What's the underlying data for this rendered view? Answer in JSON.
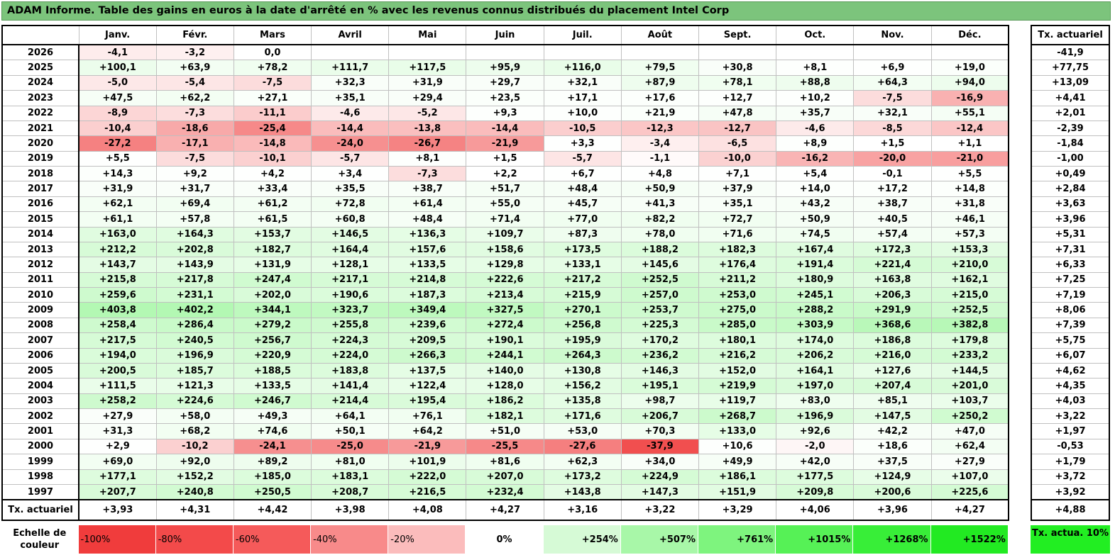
{
  "title": "ADAM Informe. Table des gains en euros à la date d'arrêté en % avec les revenus connus distribués du placement Intel Corp",
  "months": [
    "Janv.",
    "Févr.",
    "Mars",
    "Avril",
    "Mai",
    "Juin",
    "Juil.",
    "Août",
    "Sept.",
    "Oct.",
    "Nov.",
    "Déc."
  ],
  "actuarial_header": "Tx. actuariel",
  "rows": [
    {
      "year": "2026",
      "values": [
        "-4,1",
        "-3,2",
        "0,0",
        "",
        "",
        "",
        "",
        "",
        "",
        "",
        "",
        ""
      ],
      "actuarial": "-41,9"
    },
    {
      "year": "2025",
      "values": [
        "+100,1",
        "+63,9",
        "+78,2",
        "+111,7",
        "+117,5",
        "+95,9",
        "+116,0",
        "+79,5",
        "+30,8",
        "+8,1",
        "+6,9",
        "+19,0"
      ],
      "actuarial": "+77,75"
    },
    {
      "year": "2024",
      "values": [
        "-5,0",
        "-5,4",
        "-7,5",
        "+32,3",
        "+31,9",
        "+29,7",
        "+32,1",
        "+87,9",
        "+78,1",
        "+88,8",
        "+64,3",
        "+94,0"
      ],
      "actuarial": "+13,09"
    },
    {
      "year": "2023",
      "values": [
        "+47,5",
        "+62,2",
        "+27,1",
        "+35,1",
        "+29,4",
        "+23,5",
        "+17,1",
        "+17,6",
        "+12,7",
        "+10,2",
        "-7,5",
        "-16,9"
      ],
      "actuarial": "+4,41"
    },
    {
      "year": "2022",
      "values": [
        "-8,9",
        "-7,3",
        "-11,1",
        "-4,6",
        "-5,2",
        "+9,3",
        "+10,0",
        "+21,9",
        "+47,8",
        "+35,7",
        "+32,1",
        "+55,1"
      ],
      "actuarial": "+2,01"
    },
    {
      "year": "2021",
      "values": [
        "-10,4",
        "-18,6",
        "-25,4",
        "-14,4",
        "-13,8",
        "-14,4",
        "-10,5",
        "-12,3",
        "-12,7",
        "-4,6",
        "-8,5",
        "-12,4"
      ],
      "actuarial": "-2,39"
    },
    {
      "year": "2020",
      "values": [
        "-27,2",
        "-17,1",
        "-14,8",
        "-24,0",
        "-26,7",
        "-21,9",
        "+3,3",
        "-3,4",
        "-6,5",
        "+8,9",
        "+1,5",
        "+1,1"
      ],
      "actuarial": "-1,84"
    },
    {
      "year": "2019",
      "values": [
        "+5,5",
        "-7,5",
        "-10,1",
        "-5,7",
        "+8,1",
        "+1,5",
        "-5,7",
        "-1,1",
        "-10,0",
        "-16,2",
        "-20,0",
        "-21,0"
      ],
      "actuarial": "-1,00"
    },
    {
      "year": "2018",
      "values": [
        "+14,3",
        "+9,2",
        "+4,2",
        "+3,4",
        "-7,3",
        "+2,2",
        "+6,7",
        "+4,8",
        "+7,1",
        "+5,4",
        "-0,1",
        "+5,5"
      ],
      "actuarial": "+0,49"
    },
    {
      "year": "2017",
      "values": [
        "+31,9",
        "+31,7",
        "+33,4",
        "+35,5",
        "+38,7",
        "+51,7",
        "+48,4",
        "+50,9",
        "+37,9",
        "+14,0",
        "+17,2",
        "+14,8"
      ],
      "actuarial": "+2,84"
    },
    {
      "year": "2016",
      "values": [
        "+62,1",
        "+69,4",
        "+61,2",
        "+72,8",
        "+61,4",
        "+55,0",
        "+45,7",
        "+41,3",
        "+35,1",
        "+43,2",
        "+38,7",
        "+31,8"
      ],
      "actuarial": "+3,63"
    },
    {
      "year": "2015",
      "values": [
        "+61,1",
        "+57,8",
        "+61,5",
        "+60,8",
        "+48,4",
        "+71,4",
        "+77,0",
        "+82,2",
        "+72,7",
        "+50,9",
        "+40,5",
        "+46,1"
      ],
      "actuarial": "+3,96"
    },
    {
      "year": "2014",
      "values": [
        "+163,0",
        "+164,3",
        "+153,7",
        "+146,5",
        "+136,3",
        "+109,7",
        "+87,3",
        "+78,0",
        "+71,6",
        "+74,5",
        "+57,4",
        "+57,3"
      ],
      "actuarial": "+5,31"
    },
    {
      "year": "2013",
      "values": [
        "+212,2",
        "+202,8",
        "+182,7",
        "+164,4",
        "+157,6",
        "+158,6",
        "+173,5",
        "+188,2",
        "+182,3",
        "+167,4",
        "+172,3",
        "+153,3"
      ],
      "actuarial": "+7,31"
    },
    {
      "year": "2012",
      "values": [
        "+143,7",
        "+143,9",
        "+131,9",
        "+128,1",
        "+133,5",
        "+129,8",
        "+133,1",
        "+145,6",
        "+176,4",
        "+191,4",
        "+221,4",
        "+210,0"
      ],
      "actuarial": "+6,33"
    },
    {
      "year": "2011",
      "values": [
        "+215,8",
        "+217,8",
        "+247,4",
        "+217,1",
        "+214,8",
        "+222,6",
        "+217,2",
        "+252,5",
        "+211,2",
        "+180,9",
        "+163,8",
        "+162,1"
      ],
      "actuarial": "+7,25"
    },
    {
      "year": "2010",
      "values": [
        "+259,6",
        "+231,1",
        "+202,0",
        "+190,6",
        "+187,3",
        "+213,4",
        "+215,9",
        "+257,0",
        "+253,0",
        "+245,1",
        "+206,3",
        "+215,0"
      ],
      "actuarial": "+7,19"
    },
    {
      "year": "2009",
      "values": [
        "+403,8",
        "+402,2",
        "+344,1",
        "+323,7",
        "+349,4",
        "+327,5",
        "+270,1",
        "+253,7",
        "+275,0",
        "+288,2",
        "+291,9",
        "+252,5"
      ],
      "actuarial": "+8,06"
    },
    {
      "year": "2008",
      "values": [
        "+258,4",
        "+286,4",
        "+279,2",
        "+255,8",
        "+239,6",
        "+272,4",
        "+256,8",
        "+225,3",
        "+285,0",
        "+303,9",
        "+368,6",
        "+382,8"
      ],
      "actuarial": "+7,39"
    },
    {
      "year": "2007",
      "values": [
        "+217,5",
        "+240,5",
        "+256,7",
        "+224,3",
        "+209,5",
        "+190,1",
        "+195,9",
        "+170,2",
        "+180,1",
        "+174,0",
        "+186,8",
        "+179,8"
      ],
      "actuarial": "+5,75"
    },
    {
      "year": "2006",
      "values": [
        "+194,0",
        "+196,9",
        "+220,9",
        "+224,0",
        "+266,3",
        "+244,1",
        "+264,3",
        "+236,2",
        "+216,2",
        "+206,2",
        "+216,0",
        "+233,2"
      ],
      "actuarial": "+6,07"
    },
    {
      "year": "2005",
      "values": [
        "+200,5",
        "+185,7",
        "+188,5",
        "+183,8",
        "+137,5",
        "+140,0",
        "+130,8",
        "+146,3",
        "+152,0",
        "+164,1",
        "+127,6",
        "+144,5"
      ],
      "actuarial": "+4,62"
    },
    {
      "year": "2004",
      "values": [
        "+111,5",
        "+121,3",
        "+133,5",
        "+141,4",
        "+122,4",
        "+128,0",
        "+156,2",
        "+195,1",
        "+219,9",
        "+197,0",
        "+207,4",
        "+201,0"
      ],
      "actuarial": "+4,35"
    },
    {
      "year": "2003",
      "values": [
        "+258,2",
        "+224,6",
        "+246,7",
        "+214,4",
        "+195,4",
        "+186,2",
        "+135,8",
        "+98,7",
        "+119,7",
        "+83,0",
        "+85,1",
        "+103,7"
      ],
      "actuarial": "+4,03"
    },
    {
      "year": "2002",
      "values": [
        "+27,9",
        "+58,0",
        "+49,3",
        "+64,1",
        "+76,1",
        "+182,1",
        "+171,6",
        "+206,7",
        "+268,7",
        "+196,9",
        "+147,5",
        "+250,2"
      ],
      "actuarial": "+3,22"
    },
    {
      "year": "2001",
      "values": [
        "+31,3",
        "+68,2",
        "+74,6",
        "+50,1",
        "+64,2",
        "+51,0",
        "+53,0",
        "+70,3",
        "+133,0",
        "+92,6",
        "+42,2",
        "+47,0"
      ],
      "actuarial": "+1,97"
    },
    {
      "year": "2000",
      "values": [
        "+2,9",
        "-10,2",
        "-24,1",
        "-25,0",
        "-21,9",
        "-25,5",
        "-27,6",
        "-37,9",
        "+10,6",
        "-2,0",
        "+18,6",
        "+62,4"
      ],
      "actuarial": "-0,53"
    },
    {
      "year": "1999",
      "values": [
        "+69,0",
        "+92,0",
        "+89,2",
        "+81,0",
        "+101,9",
        "+81,6",
        "+62,3",
        "+34,0",
        "+49,9",
        "+42,0",
        "+37,5",
        "+27,9"
      ],
      "actuarial": "+1,79"
    },
    {
      "year": "1998",
      "values": [
        "+177,1",
        "+152,2",
        "+185,0",
        "+183,1",
        "+222,0",
        "+207,0",
        "+173,2",
        "+224,9",
        "+186,1",
        "+177,5",
        "+124,9",
        "+107,0"
      ],
      "actuarial": "+3,72"
    },
    {
      "year": "1997",
      "values": [
        "+207,7",
        "+240,8",
        "+250,5",
        "+208,7",
        "+216,5",
        "+232,4",
        "+143,8",
        "+147,3",
        "+151,9",
        "+209,8",
        "+200,6",
        "+225,6"
      ],
      "actuarial": "+3,92"
    }
  ],
  "summary": {
    "label": "Tx. actuariel",
    "values": [
      "+3,93",
      "+4,31",
      "+4,42",
      "+3,98",
      "+4,08",
      "+4,27",
      "+3,16",
      "+3,22",
      "+3,29",
      "+4,06",
      "+3,96",
      "+4,27"
    ],
    "actuarial": "+4,88"
  },
  "scale": {
    "label": "Echelle de couleur",
    "steps": [
      {
        "label": "-100%",
        "color": "#f03c3c",
        "kind": "neg"
      },
      {
        "label": "-80%",
        "color": "#f34a4a",
        "kind": "neg"
      },
      {
        "label": "-60%",
        "color": "#f55a5a",
        "kind": "neg"
      },
      {
        "label": "-40%",
        "color": "#f88a8a",
        "kind": "neg"
      },
      {
        "label": "-20%",
        "color": "#fbbcbc",
        "kind": "neg"
      },
      {
        "label": "0%",
        "color": "#ffffff",
        "kind": "zero"
      },
      {
        "label": "+254%",
        "color": "#d6fad6",
        "kind": "pos"
      },
      {
        "label": "+507%",
        "color": "#a8f7a8",
        "kind": "pos"
      },
      {
        "label": "+761%",
        "color": "#7ef47e",
        "kind": "pos"
      },
      {
        "label": "+1015%",
        "color": "#56f156",
        "kind": "pos"
      },
      {
        "label": "+1268%",
        "color": "#38ee38",
        "kind": "pos"
      },
      {
        "label": "+1522%",
        "color": "#22ea22",
        "kind": "pos"
      }
    ]
  },
  "legend_box": {
    "label": "Tx. actua. 10%",
    "color": "#22ee22"
  },
  "colors": {
    "title_bg": "#7cc47c",
    "positive": "#22ea22",
    "negative": "#f03c3c",
    "neutral": "#ffffff"
  }
}
